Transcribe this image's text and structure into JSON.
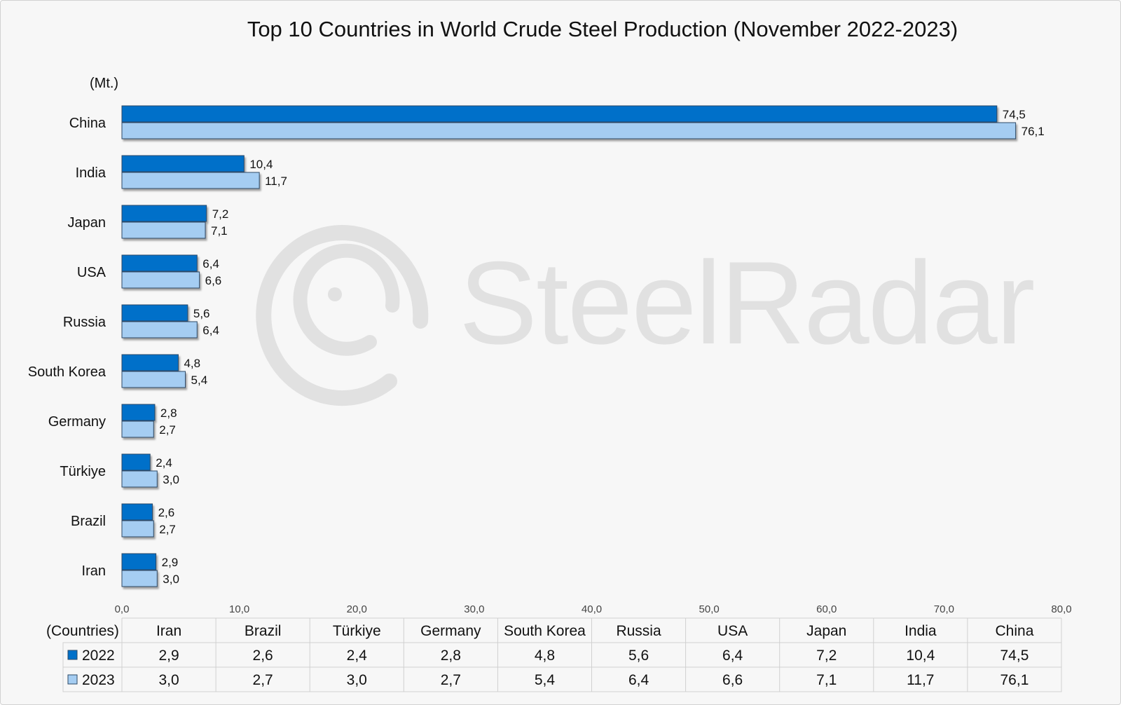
{
  "chart_data": {
    "type": "bar",
    "orientation": "horizontal",
    "title": "Top 10 Countries in World Crude Steel Production (November 2022-2023)",
    "unit_label": "(Mt.)",
    "categories": [
      "China",
      "India",
      "Japan",
      "USA",
      "Russia",
      "South Korea",
      "Germany",
      "Türkiye",
      "Brazil",
      "Iran"
    ],
    "series": [
      {
        "name": "2022",
        "color": "#0070c9",
        "values": [
          74.5,
          10.4,
          7.2,
          6.4,
          5.6,
          4.8,
          2.8,
          2.4,
          2.6,
          2.9
        ]
      },
      {
        "name": "2023",
        "color": "#a5cdf2",
        "values": [
          76.1,
          11.7,
          7.1,
          6.6,
          6.4,
          5.4,
          2.7,
          3.0,
          2.7,
          3.0
        ]
      }
    ],
    "xlim": [
      0,
      80
    ],
    "x_ticks": [
      "0,0",
      "10,0",
      "20,0",
      "30,0",
      "40,0",
      "50,0",
      "60,0",
      "70,0",
      "80,0"
    ],
    "grid": false,
    "legend_placement": "data-table",
    "data_table": {
      "header_label": "(Countries)",
      "columns": [
        "Iran",
        "Brazil",
        "Türkiye",
        "Germany",
        "South Korea",
        "Russia",
        "USA",
        "Japan",
        "India",
        "China"
      ],
      "rows": [
        {
          "name": "2022",
          "values": [
            "2,9",
            "2,6",
            "2,4",
            "2,8",
            "4,8",
            "5,6",
            "6,4",
            "7,2",
            "10,4",
            "74,5"
          ]
        },
        {
          "name": "2023",
          "values": [
            "3,0",
            "2,7",
            "3,0",
            "2,7",
            "5,4",
            "6,4",
            "6,6",
            "7,1",
            "11,7",
            "76,1"
          ]
        }
      ]
    }
  },
  "watermark": {
    "text": "SteelRadar",
    "icon": "radar-logo-icon"
  }
}
